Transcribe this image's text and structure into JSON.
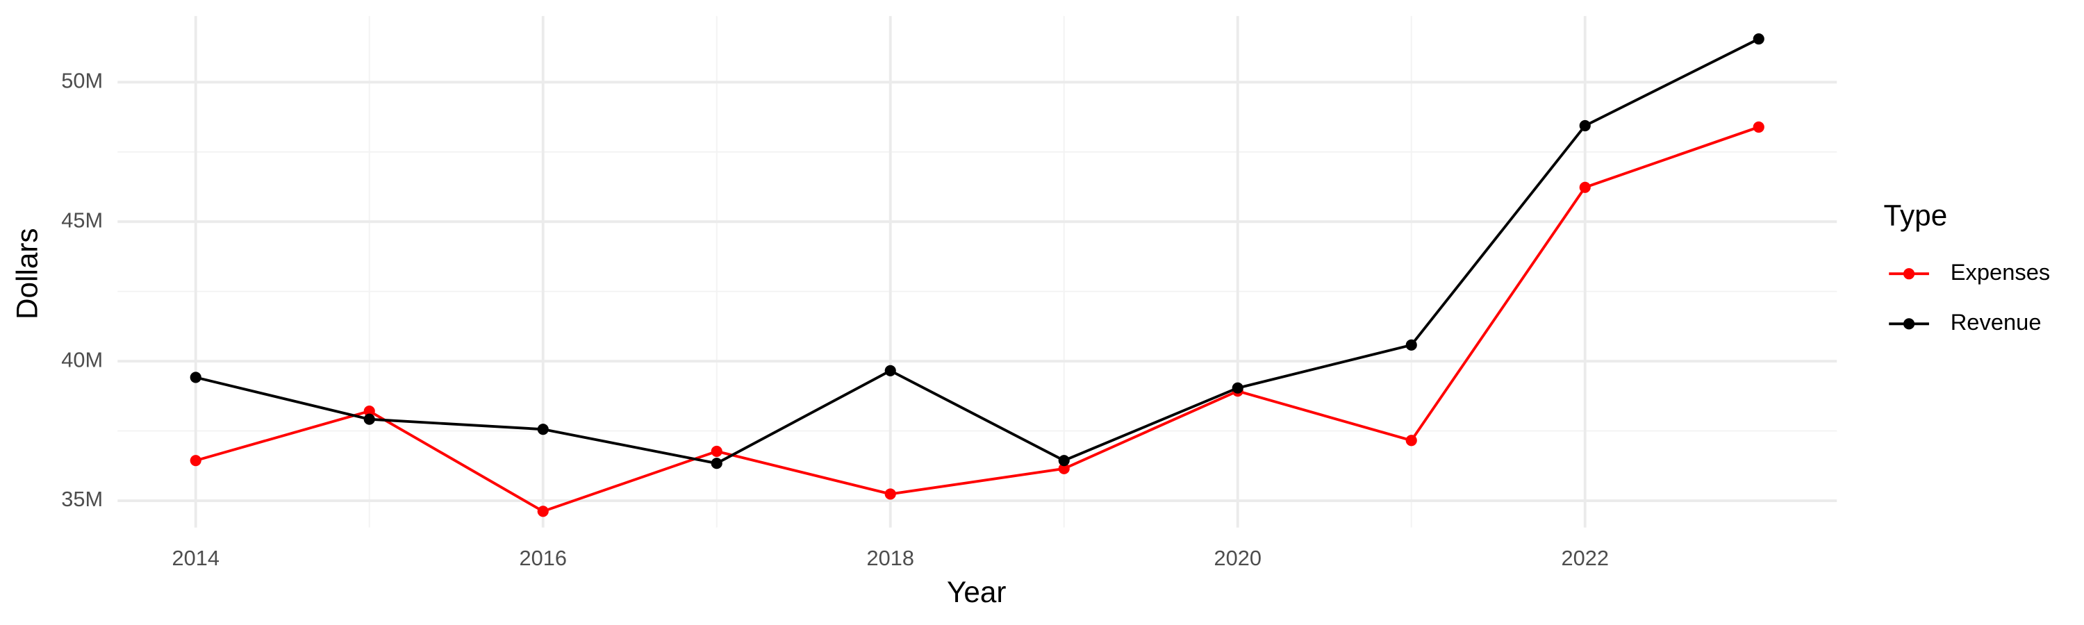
{
  "chart_data": {
    "type": "line",
    "x": [
      2014,
      2015,
      2016,
      2017,
      2018,
      2019,
      2020,
      2021,
      2022,
      2023
    ],
    "series": [
      {
        "name": "Expenses",
        "color": "#ff0000",
        "values": [
          36440000,
          38210000,
          34620000,
          36770000,
          35240000,
          36150000,
          38930000,
          37160000,
          46230000,
          48390000
        ]
      },
      {
        "name": "Revenue",
        "color": "#000000",
        "values": [
          39420000,
          37920000,
          37560000,
          36340000,
          39660000,
          36440000,
          39040000,
          40580000,
          48440000,
          51550000
        ]
      }
    ],
    "xlabel": "Year",
    "ylabel": "Dollars",
    "legend_title": "Type",
    "xlim": [
      2013.55,
      2023.45
    ],
    "xticks": [
      2014,
      2016,
      2018,
      2020,
      2022
    ],
    "ylim": [
      34040000,
      52370000
    ],
    "yticks": [
      {
        "value": 35000000,
        "label": "35M"
      },
      {
        "value": 40000000,
        "label": "40M"
      },
      {
        "value": 45000000,
        "label": "45M"
      },
      {
        "value": 50000000,
        "label": "50M"
      }
    ],
    "grid": true,
    "legend": "right"
  }
}
